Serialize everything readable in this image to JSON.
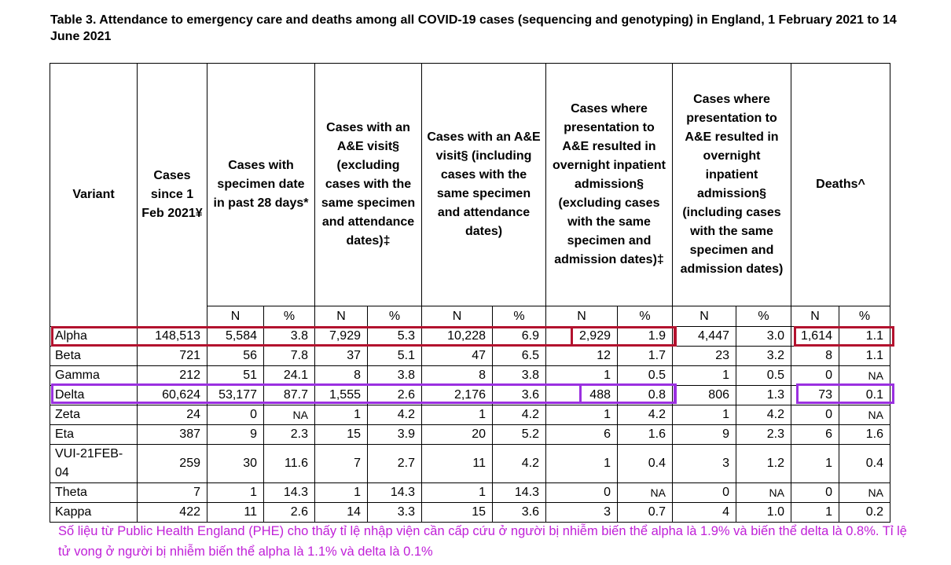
{
  "title": "Table 3. Attendance to emergency care and deaths among all COVID-19 cases (sequencing and genotyping) in England, 1 February 2021 to 14 June 2021",
  "table": {
    "headers": [
      "Variant",
      "Cases since 1 Feb 2021¥",
      "Cases with specimen date in past 28 days*",
      "Cases with an A&E visit§ (excluding cases with the same specimen and attendance dates)‡",
      "Cases with an A&E visit§ (including cases with the same specimen and attendance dates)",
      "Cases where presentation to A&E resulted in overnight inpatient admission§ (excluding cases with the same specimen and admission dates)‡",
      "Cases where presentation to A&E resulted in overnight inpatient admission§ (including cases with the same specimen and admission dates)",
      "Deaths^"
    ],
    "sub_headers": [
      "N",
      "%",
      "N",
      "%",
      "N",
      "%",
      "N",
      "%",
      "N",
      "%",
      "N",
      "%"
    ],
    "rows": [
      {
        "variant": "Alpha",
        "cells": [
          "148,513",
          "5,584",
          "3.8",
          "7,929",
          "5.3",
          "10,228",
          "6.9",
          "2,929",
          "1.9",
          "4,447",
          "3.0",
          "1,614",
          "1.1"
        ]
      },
      {
        "variant": "Beta",
        "cells": [
          "721",
          "56",
          "7.8",
          "37",
          "5.1",
          "47",
          "6.5",
          "12",
          "1.7",
          "23",
          "3.2",
          "8",
          "1.1"
        ]
      },
      {
        "variant": "Gamma",
        "cells": [
          "212",
          "51",
          "24.1",
          "8",
          "3.8",
          "8",
          "3.8",
          "1",
          "0.5",
          "1",
          "0.5",
          "0",
          "NA"
        ]
      },
      {
        "variant": "Delta",
        "cells": [
          "60,624",
          "53,177",
          "87.7",
          "1,555",
          "2.6",
          "2,176",
          "3.6",
          "488",
          "0.8",
          "806",
          "1.3",
          "73",
          "0.1"
        ]
      },
      {
        "variant": "Zeta",
        "cells": [
          "24",
          "0",
          "NA",
          "1",
          "4.2",
          "1",
          "4.2",
          "1",
          "4.2",
          "1",
          "4.2",
          "0",
          "NA"
        ]
      },
      {
        "variant": "Eta",
        "cells": [
          "387",
          "9",
          "2.3",
          "15",
          "3.9",
          "20",
          "5.2",
          "6",
          "1.6",
          "9",
          "2.3",
          "6",
          "1.6"
        ]
      },
      {
        "variant": "VUI-21FEB-04",
        "cells": [
          "259",
          "30",
          "11.6",
          "7",
          "2.7",
          "11",
          "4.2",
          "1",
          "0.4",
          "3",
          "1.2",
          "1",
          "0.4"
        ]
      },
      {
        "variant": "Theta",
        "cells": [
          "7",
          "1",
          "14.3",
          "1",
          "14.3",
          "1",
          "14.3",
          "0",
          "NA",
          "0",
          "NA",
          "0",
          "NA"
        ]
      },
      {
        "variant": "Kappa",
        "cells": [
          "422",
          "11",
          "2.6",
          "14",
          "3.3",
          "15",
          "3.6",
          "3",
          "0.7",
          "4",
          "1.0",
          "1",
          "0.2"
        ]
      }
    ]
  },
  "highlight_colors": {
    "alpha": "#b3122e",
    "delta": "#9b30e0"
  },
  "footnote": "Số liệu từ Public Health England (PHE) cho thấy tỉ lệ nhập viện cần cấp cứu ở người bị nhiễm biến thể alpha là 1.9% và biến thể delta là 0.8%. Tỉ lệ tử vong ở người bị nhiễm biến thể alpha là 1.1% và delta là 0.1%",
  "footnote_color": "#c020d8"
}
